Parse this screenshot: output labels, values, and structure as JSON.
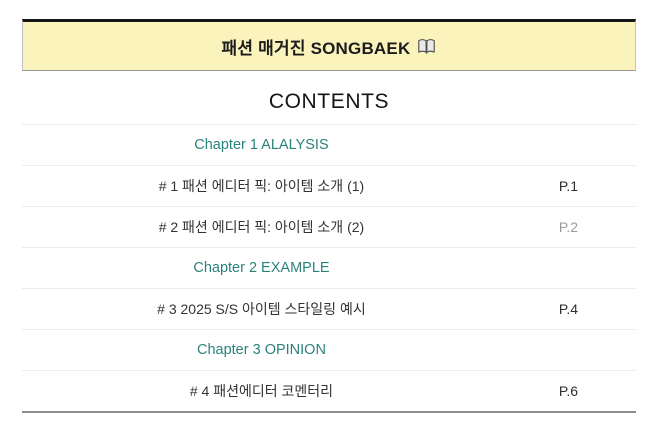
{
  "banner": {
    "title": "패션 매거진 SONGBAEK",
    "icon": "open-book-icon"
  },
  "contents": {
    "heading": "CONTENTS"
  },
  "toc": {
    "rows": [
      {
        "type": "chapter",
        "label": "Chapter 1 ALALYSIS",
        "page": "",
        "page_muted": false
      },
      {
        "type": "item",
        "label": "# 1 패션 에디터 픽: 아이템 소개 (1)",
        "page": "P.1",
        "page_muted": false
      },
      {
        "type": "item",
        "label": "# 2 패션 에디터 픽: 아이템 소개 (2)",
        "page": "P.2",
        "page_muted": true
      },
      {
        "type": "chapter",
        "label": "Chapter 2 EXAMPLE",
        "page": "",
        "page_muted": false
      },
      {
        "type": "item",
        "label": "# 3 2025 S/S 아이템 스타일링 예시",
        "page": "P.4",
        "page_muted": false
      },
      {
        "type": "chapter",
        "label": "Chapter 3 OPINION",
        "page": "",
        "page_muted": false
      },
      {
        "type": "item",
        "label": "# 4 패션에디터 코멘터리",
        "page": "P.6",
        "page_muted": false
      }
    ]
  },
  "colors": {
    "banner_bg": "#FAF3BC",
    "accent_teal": "#2A837B",
    "muted_page": "#9B9B9B"
  }
}
